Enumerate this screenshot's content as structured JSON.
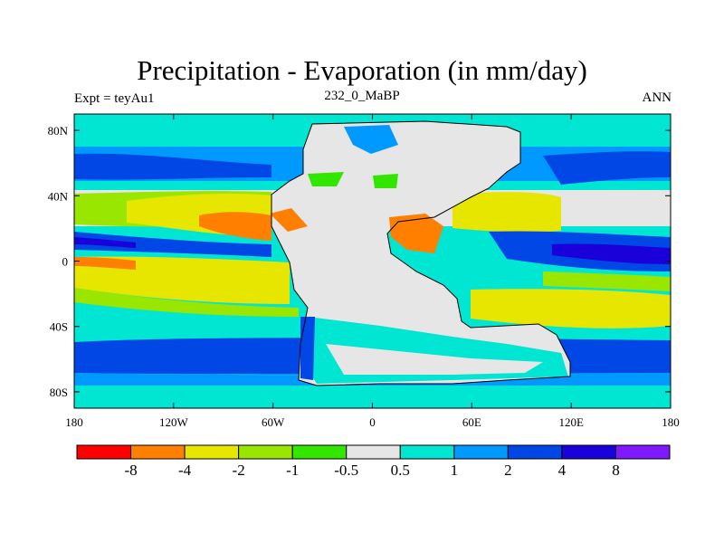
{
  "chart_data": {
    "type": "heatmap",
    "title": "Precipitation - Evaporation (in mm/day)",
    "left_string": "Expt = teyAu1",
    "center_string": "232_0_MaBP",
    "right_string": "ANN",
    "x_ticks": [
      {
        "value": -180,
        "label": "180"
      },
      {
        "value": -120,
        "label": "120W"
      },
      {
        "value": -60,
        "label": "60W"
      },
      {
        "value": 0,
        "label": "0"
      },
      {
        "value": 60,
        "label": "60E"
      },
      {
        "value": 120,
        "label": "120E"
      },
      {
        "value": 180,
        "label": "180"
      }
    ],
    "y_ticks": [
      {
        "value": 80,
        "label": "80N"
      },
      {
        "value": 40,
        "label": "40N"
      },
      {
        "value": 0,
        "label": "0"
      },
      {
        "value": -40,
        "label": "40S"
      },
      {
        "value": -80,
        "label": "80S"
      }
    ],
    "xlim": [
      -180,
      180
    ],
    "ylim": [
      -90,
      90
    ],
    "colorbar": {
      "levels": [
        "-8",
        "-4",
        "-2",
        "-1",
        "-0.5",
        "0.5",
        "1",
        "2",
        "4",
        "8"
      ],
      "colors": [
        "#ff0000",
        "#ff7f00",
        "#e6e600",
        "#99e600",
        "#33e600",
        "#e6e6e6",
        "#00e6d2",
        "#0099ff",
        "#0047e6",
        "#1a00d9",
        "#7f1aff"
      ]
    },
    "regions": [
      {
        "band": "90N-80N",
        "color": "#00e6d2"
      },
      {
        "band": "70N-50N",
        "color": "#0047e6"
      },
      {
        "band": "30N-10N subtropical oceans",
        "color": "#e6e600"
      },
      {
        "band": "10N-0 equatorial Pacific",
        "color": "#0047e6"
      },
      {
        "band": "Pangea interior",
        "color": "#e6e6e6"
      },
      {
        "band": "50S-70S",
        "color": "#0047e6"
      }
    ]
  }
}
